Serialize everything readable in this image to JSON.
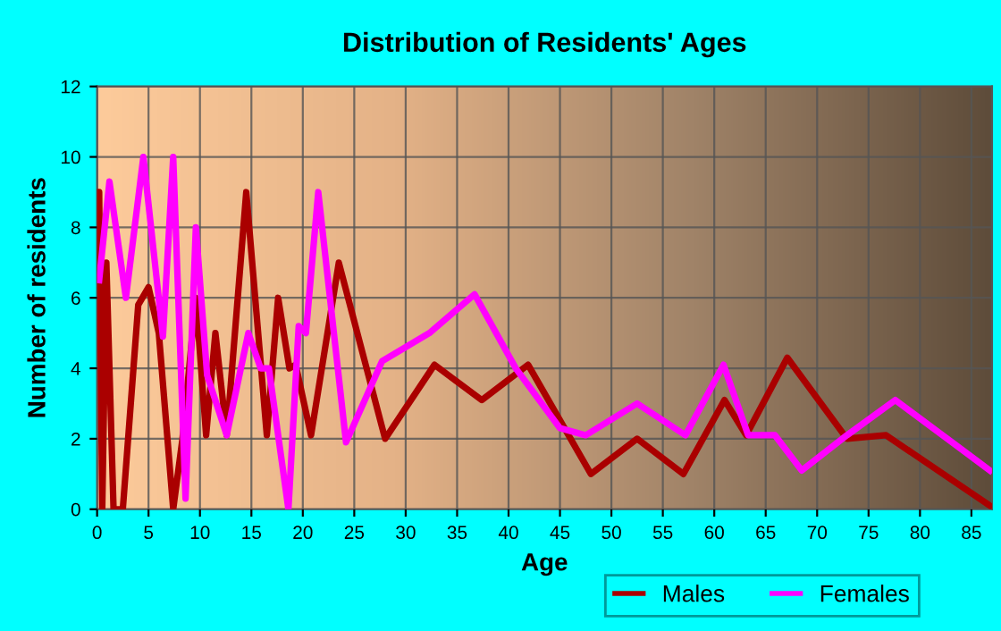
{
  "chart_data": {
    "type": "line",
    "title": "Distribution of Residents' Ages",
    "xlabel": "Age",
    "ylabel": "Number of residents",
    "xlim": [
      0,
      87
    ],
    "xticks": [
      0,
      5,
      10,
      15,
      20,
      25,
      30,
      35,
      40,
      45,
      50,
      55,
      60,
      65,
      70,
      75,
      80,
      85
    ],
    "ylim": [
      0,
      12
    ],
    "yticks": [
      0,
      2,
      4,
      6,
      8,
      10,
      12
    ],
    "grid": true,
    "legend": "bottom right",
    "marker": "none",
    "line_style": "solid",
    "series": [
      {
        "name": "Males",
        "color": "#aa0000",
        "x": [
          0,
          0.2,
          0.5,
          0.9,
          1.6,
          2.5,
          4,
          5,
          6,
          7.4,
          8.3,
          9.6,
          10.6,
          11.5,
          12.6,
          14.5,
          16.5,
          17.6,
          18.7,
          19.3,
          20.8,
          23.5,
          28,
          32.8,
          37.4,
          41.9,
          48,
          52.5,
          57,
          61,
          63.1,
          67.1,
          72.9,
          76.7,
          86.8
        ],
        "values": [
          9,
          9,
          0,
          7,
          0,
          0,
          5.8,
          6.3,
          5,
          0,
          2,
          6,
          2.1,
          5,
          2.1,
          9,
          2.1,
          6,
          4,
          4.1,
          2.1,
          7,
          2,
          4.1,
          3.1,
          4.1,
          1,
          2,
          1,
          3.1,
          2.1,
          4.3,
          2,
          2.1,
          0.1
        ]
      },
      {
        "name": "Females",
        "color": "#ff00ff",
        "x": [
          0.2,
          1.2,
          2.8,
          4.5,
          6.4,
          7.4,
          8.6,
          9.6,
          10.7,
          12.6,
          14.7,
          15.9,
          16.7,
          18.6,
          19.6,
          20.3,
          21.5,
          24.2,
          27.7,
          32.3,
          36.7,
          40.7,
          45,
          47.5,
          52.5,
          57.2,
          60.9,
          63.3,
          65.9,
          68.5,
          72.9,
          77.6,
          86.8
        ],
        "values": [
          6.5,
          9.3,
          6,
          10,
          4.9,
          10,
          0.3,
          8,
          3.8,
          2.1,
          5,
          4,
          4,
          0,
          5.2,
          5,
          9,
          1.9,
          4.2,
          5,
          6.1,
          4,
          2.3,
          2.1,
          3,
          2.1,
          4.1,
          2.1,
          2.1,
          1.1,
          2.1,
          3.1,
          1.1
        ]
      }
    ]
  }
}
